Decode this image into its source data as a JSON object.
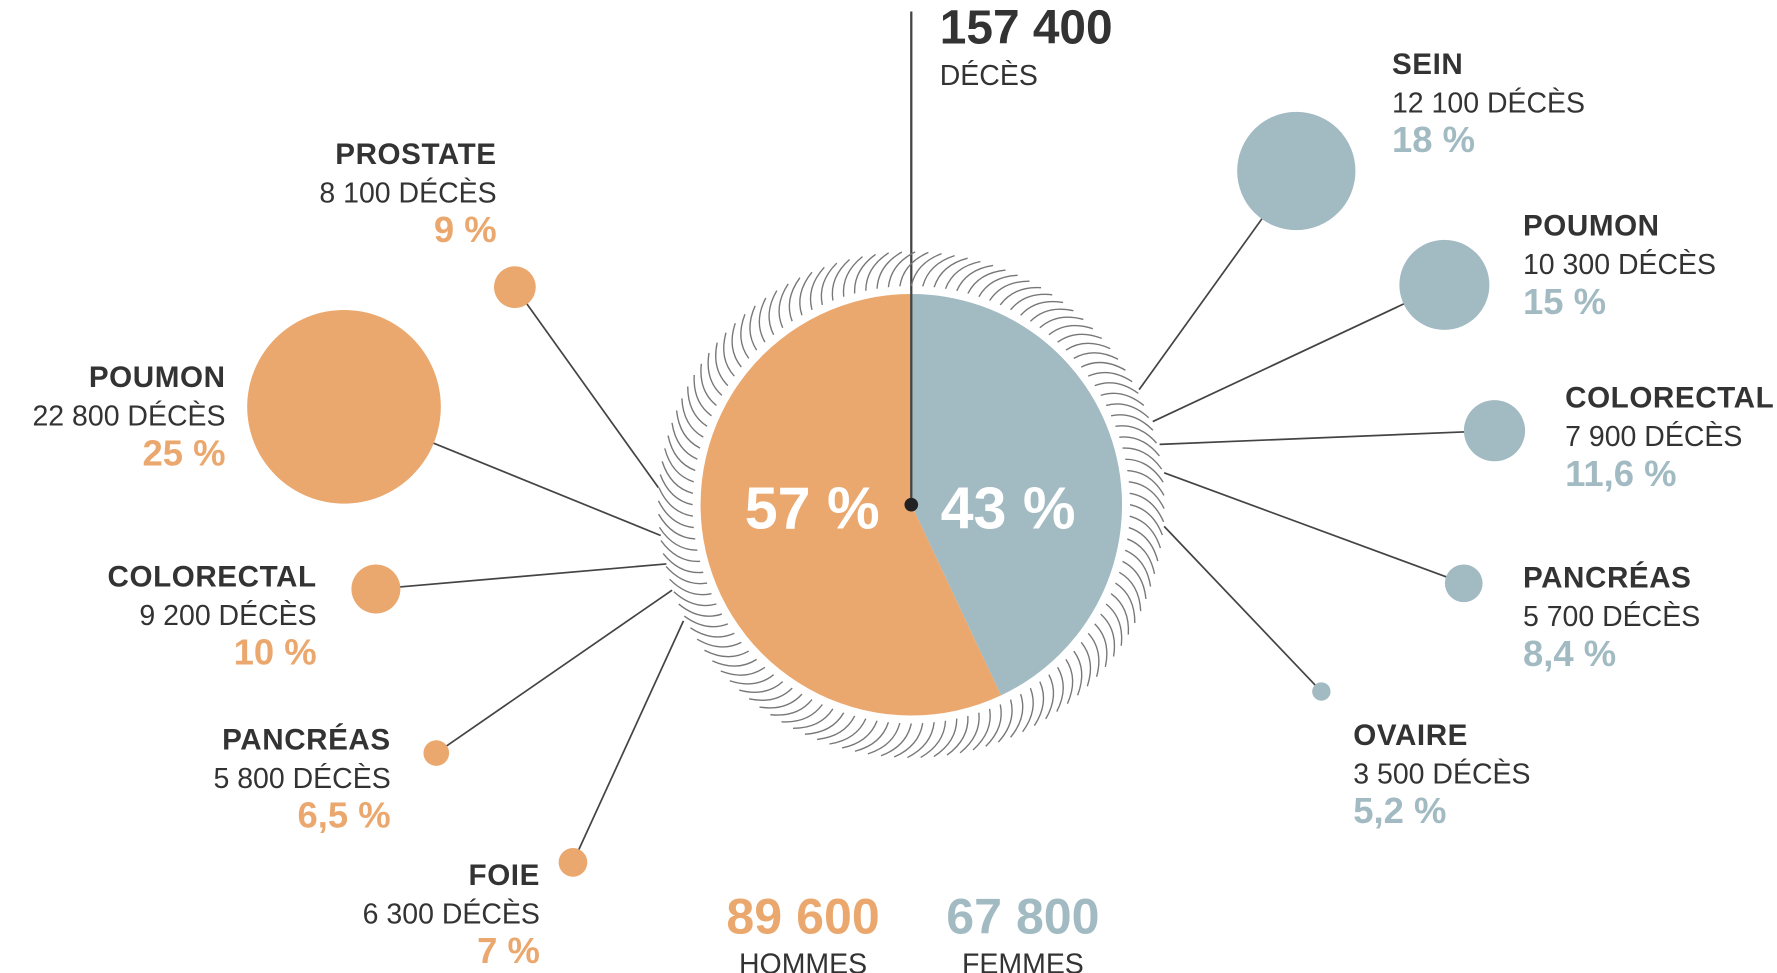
{
  "chart_data": {
    "type": "pie",
    "total": {
      "value": 157400,
      "label": "157 400",
      "unit": "DÉCÈS"
    },
    "slices": [
      {
        "name": "HOMMES",
        "total": 89600,
        "total_label": "89 600",
        "value": 57,
        "value_label": "57 %",
        "color": "#eba86e",
        "cancers": {
          "categories": [
            "PROSTATE",
            "POUMON",
            "COLORECTAL",
            "PANCRÉAS",
            "FOIE"
          ],
          "deaths": [
            8100,
            22800,
            9200,
            5800,
            6300
          ],
          "death_labels": [
            "8 100 DÉCÈS",
            "22 800 DÉCÈS",
            "9 200 DÉCÈS",
            "5 800 DÉCÈS",
            "6 300 DÉCÈS"
          ],
          "values": [
            9,
            25,
            10,
            6.5,
            7
          ],
          "value_labels": [
            "9 %",
            "25 %",
            "10 %",
            "6,5 %",
            "7 %"
          ]
        }
      },
      {
        "name": "FEMMES",
        "total": 67800,
        "total_label": "67 800",
        "value": 43,
        "value_label": "43 %",
        "color": "#a2bac2",
        "cancers": {
          "categories": [
            "SEIN",
            "POUMON",
            "COLORECTAL",
            "PANCRÉAS",
            "OVAIRE"
          ],
          "deaths": [
            12100,
            10300,
            7900,
            5700,
            3500
          ],
          "death_labels": [
            "12 100 DÉCÈS",
            "10 300 DÉCÈS",
            "7 900 DÉCÈS",
            "5 700 DÉCÈS",
            "3 500 DÉCÈS"
          ],
          "values": [
            18,
            15,
            11.6,
            8.4,
            5.2
          ],
          "value_labels": [
            "18 %",
            "15 %",
            "11,6 %",
            "8,4 %",
            "5,2 %"
          ]
        }
      }
    ]
  }
}
